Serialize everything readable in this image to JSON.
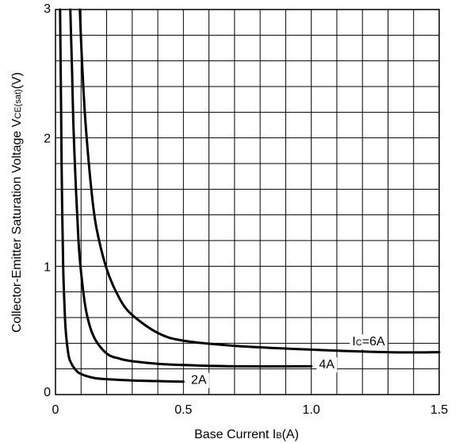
{
  "chart_data": {
    "type": "line",
    "title": "",
    "xlabel": {
      "main": "Base Current I",
      "sub": "B",
      "unit": "(A)"
    },
    "ylabel": {
      "main": "Collector-Emitter Saturation Voltage V",
      "sub": "CE(sat)",
      "unit": "(V)"
    },
    "xlim": [
      0,
      1.5
    ],
    "ylim": [
      0,
      3
    ],
    "x_ticks": [
      {
        "value": 0,
        "label": "0"
      },
      {
        "value": 0.5,
        "label": "0.5"
      },
      {
        "value": 1.0,
        "label": "1.0"
      },
      {
        "value": 1.5,
        "label": "1.5"
      }
    ],
    "y_ticks": [
      {
        "value": 0,
        "label": "0"
      },
      {
        "value": 1,
        "label": "1"
      },
      {
        "value": 2,
        "label": "2"
      },
      {
        "value": 3,
        "label": "3"
      }
    ],
    "grid": true,
    "grid_step": {
      "x": 0.1,
      "y": 0.2
    },
    "series": [
      {
        "label": {
          "main": "",
          "sub": "",
          "value": "2A"
        },
        "x": [
          0.018,
          0.022,
          0.025,
          0.03,
          0.035,
          0.04,
          0.05,
          0.06,
          0.08,
          0.1,
          0.15,
          0.2,
          0.3,
          0.4,
          0.5
        ],
        "y": [
          3.0,
          2.2,
          1.6,
          1.0,
          0.7,
          0.5,
          0.32,
          0.25,
          0.19,
          0.16,
          0.13,
          0.12,
          0.11,
          0.105,
          0.1
        ],
        "label_value": {
          "x": 0.53,
          "y": 0.12
        }
      },
      {
        "label": {
          "main": "",
          "sub": "",
          "value": "4A"
        },
        "x": [
          0.058,
          0.065,
          0.07,
          0.08,
          0.09,
          0.1,
          0.12,
          0.15,
          0.2,
          0.25,
          0.3,
          0.4,
          0.5,
          0.7,
          1.0
        ],
        "y": [
          3.0,
          2.5,
          2.1,
          1.6,
          1.2,
          0.95,
          0.65,
          0.45,
          0.32,
          0.28,
          0.26,
          0.24,
          0.23,
          0.22,
          0.22
        ],
        "label_value": {
          "x": 1.03,
          "y": 0.24
        }
      },
      {
        "label": {
          "main": "I",
          "sub": "C",
          "value": "=6A"
        },
        "x": [
          0.095,
          0.1,
          0.11,
          0.12,
          0.14,
          0.16,
          0.2,
          0.25,
          0.3,
          0.4,
          0.5,
          0.7,
          1.0,
          1.3,
          1.5
        ],
        "y": [
          3.0,
          2.75,
          2.35,
          2.05,
          1.6,
          1.3,
          0.98,
          0.75,
          0.62,
          0.48,
          0.42,
          0.38,
          0.35,
          0.33,
          0.33
        ],
        "label_value": {
          "x": 1.16,
          "y": 0.42
        }
      }
    ]
  }
}
